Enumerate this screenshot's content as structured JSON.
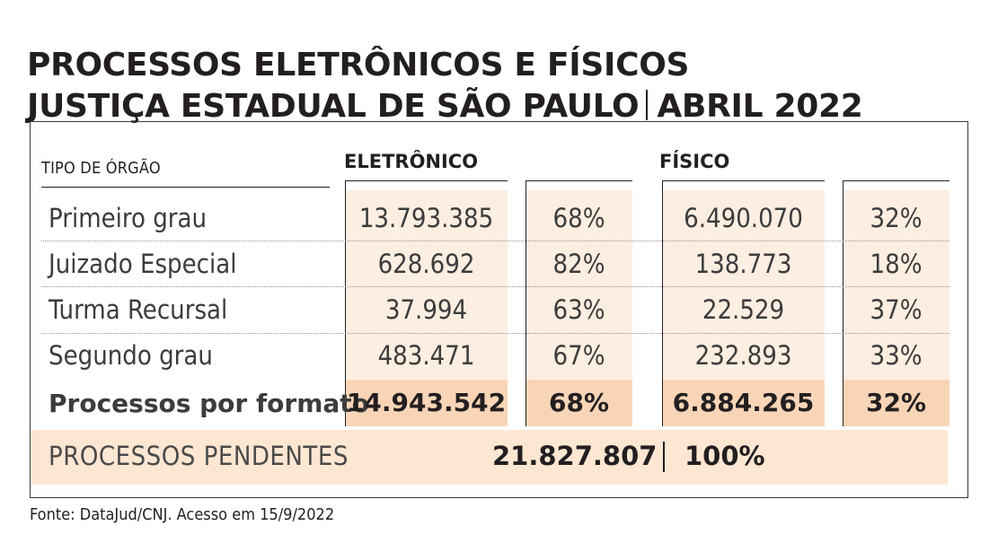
{
  "title_line1": "PROCESSOS ELETRÔNICOS E FÍSICOS",
  "title_line2_part1": "JUSTIÇA ESTADUAL DE SÃO PAULO",
  "title_line2_part2": "ABRIL 2022",
  "chart_data": {
    "type": "table",
    "header": {
      "tipo": "TIPO DE ÓRGÃO",
      "eletronico": "ELETRÔNICO",
      "fisico": "FÍSICO"
    },
    "rows": [
      {
        "label": "Primeiro grau",
        "eletronico": "13.793.385",
        "eletronico_pct": "68%",
        "fisico": "6.490.070",
        "fisico_pct": "32%"
      },
      {
        "label": "Juizado Especial",
        "eletronico": "628.692",
        "eletronico_pct": "82%",
        "fisico": "138.773",
        "fisico_pct": "18%"
      },
      {
        "label": "Turma Recursal",
        "eletronico": "37.994",
        "eletronico_pct": "63%",
        "fisico": "22.529",
        "fisico_pct": "37%"
      },
      {
        "label": "Segundo grau",
        "eletronico": "483.471",
        "eletronico_pct": "67%",
        "fisico": "232.893",
        "fisico_pct": "33%"
      }
    ],
    "total": {
      "label": "Processos por formato",
      "eletronico": "14.943.542",
      "eletronico_pct": "68%",
      "fisico": "6.884.265",
      "fisico_pct": "32%"
    },
    "pendentes": {
      "label": "PROCESSOS PENDENTES",
      "value": "21.827.807",
      "pct": "100%"
    }
  },
  "colors": {
    "band_light": "#fdeee2",
    "band_strong": "#f9d5b7",
    "pending_band": "#fde7d3",
    "text": "#231f20"
  },
  "source": "Fonte: DataJud/CNJ. Acesso em 15/9/2022"
}
